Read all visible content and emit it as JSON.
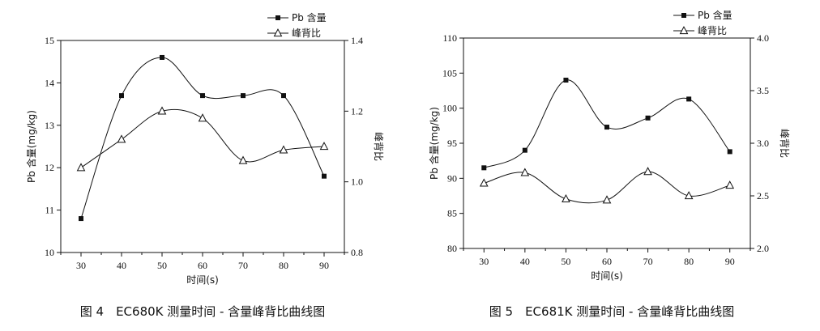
{
  "chart_data": [
    {
      "type": "line",
      "caption": "图 4　EC680K 测量时间 - 含量峰背比曲线图",
      "xlabel": "时间(s)",
      "ylabel_left": "Pb 含量(mg/kg)",
      "ylabel_right": "峰背比",
      "x": [
        30,
        40,
        50,
        60,
        70,
        80,
        90
      ],
      "x_ticks": [
        "30",
        "40",
        "50",
        "60",
        "70",
        "80",
        "90"
      ],
      "xlim": [
        25,
        95
      ],
      "ylim_left": [
        10,
        15
      ],
      "y_ticks_left": [
        "10",
        "11",
        "12",
        "13",
        "14",
        "15"
      ],
      "ylim_right": [
        0.8,
        1.4
      ],
      "y_ticks_right": [
        "0.8",
        "1.0",
        "1.2",
        "1.4"
      ],
      "legend_position": "top-right",
      "series": [
        {
          "name": "Pb 含量",
          "axis": "left",
          "marker": "square",
          "values": [
            10.8,
            13.7,
            14.6,
            13.7,
            13.7,
            13.7,
            11.8
          ]
        },
        {
          "name": "峰背比",
          "axis": "right",
          "marker": "triangle",
          "values": [
            1.04,
            1.12,
            1.2,
            1.18,
            1.06,
            1.09,
            1.1
          ]
        }
      ]
    },
    {
      "type": "line",
      "caption": "图 5　EC681K 测量时间 - 含量峰背比曲线图",
      "xlabel": "时间(s)",
      "ylabel_left": "Pb 含量(mg/kg)",
      "ylabel_right": "峰背比",
      "x": [
        30,
        40,
        50,
        60,
        70,
        80,
        90
      ],
      "x_ticks": [
        "30",
        "40",
        "50",
        "60",
        "70",
        "80",
        "90"
      ],
      "xlim": [
        25,
        95
      ],
      "ylim_left": [
        80,
        110
      ],
      "y_ticks_left": [
        "80",
        "85",
        "90",
        "95",
        "100",
        "105",
        "110"
      ],
      "ylim_right": [
        2.0,
        4.0
      ],
      "y_ticks_right": [
        "2.0",
        "2.5",
        "3.0",
        "3.5",
        "4.0"
      ],
      "legend_position": "top-right",
      "series": [
        {
          "name": "Pb 含量",
          "axis": "left",
          "marker": "square",
          "values": [
            91.5,
            94.0,
            104.0,
            97.3,
            98.6,
            101.3,
            93.8
          ]
        },
        {
          "name": "峰背比",
          "axis": "right",
          "marker": "triangle",
          "values": [
            2.62,
            2.72,
            2.47,
            2.46,
            2.73,
            2.5,
            2.6
          ]
        }
      ]
    }
  ]
}
